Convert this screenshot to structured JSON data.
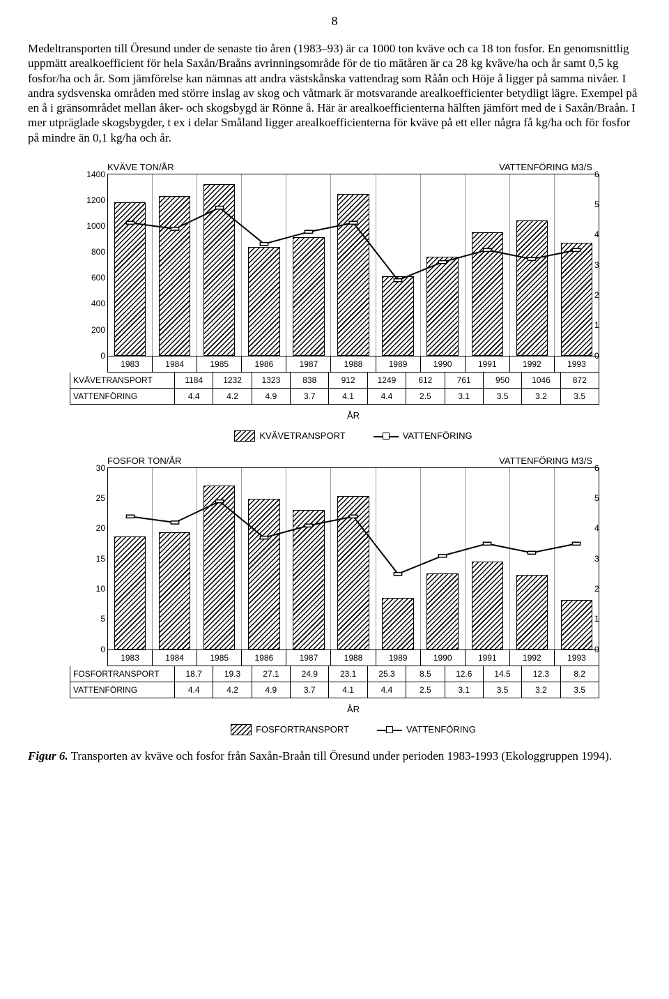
{
  "page_number": "8",
  "body_text": "Medeltransporten till Öresund under de senaste tio åren (1983–93) är ca 1000 ton kväve och ca 18 ton fosfor. En genomsnittlig uppmätt arealkoefficient för hela Saxån/Braåns avrinningsområde för de tio mätåren är ca 28 kg kväve/ha och år samt 0,5 kg fosfor/ha och år. Som jämförelse kan nämnas att andra västskånska vattendrag som Råån och Höje å ligger på samma nivåer. I andra sydsvenska områden med större inslag av skog och våtmark är motsvarande arealkoefficienter betydligt lägre. Exempel på en å i gränsområdet mellan åker- och skogsbygd är Rönne å. Här är arealkoefficienterna hälften jämfört med de i Saxån/Braån. I mer utpräglade skogsbygder, t ex i delar Småland ligger arealkoefficienterna för kväve på ett eller några få kg/ha och för fosfor på mindre än 0,1 kg/ha och år.",
  "charts": [
    {
      "left_title": "KVÄVE TON/ÅR",
      "right_title": "VATTENFÖRING M3/S",
      "y_left": {
        "min": 0,
        "max": 1400,
        "step": 200
      },
      "y_right": {
        "min": 0,
        "max": 6,
        "step": 1
      },
      "years": [
        "1983",
        "1984",
        "1985",
        "1986",
        "1987",
        "1988",
        "1989",
        "1990",
        "1991",
        "1992",
        "1993"
      ],
      "bar_label": "KVÄVETRANSPORT",
      "line_label": "VATTENFÖRING",
      "bar_values": [
        1184,
        1232,
        1323,
        838,
        912,
        1249,
        612,
        761,
        950,
        1046,
        872
      ],
      "line_values": [
        4.4,
        4.2,
        4.9,
        3.7,
        4.1,
        4.4,
        2.5,
        3.1,
        3.5,
        3.2,
        3.5
      ],
      "x_label": "ÅR",
      "legend_bar": "KVÄVETRANSPORT",
      "legend_line": "VATTENFÖRING"
    },
    {
      "left_title": "FOSFOR TON/ÅR",
      "right_title": "VATTENFÖRING M3/S",
      "y_left": {
        "min": 0,
        "max": 30,
        "step": 5
      },
      "y_right": {
        "min": 0,
        "max": 6,
        "step": 1
      },
      "years": [
        "1983",
        "1984",
        "1985",
        "1986",
        "1987",
        "1988",
        "1989",
        "1990",
        "1991",
        "1992",
        "1993"
      ],
      "bar_label": "FOSFORTRANSPORT",
      "line_label": "VATTENFÖRING",
      "bar_values": [
        18.7,
        19.3,
        27.1,
        24.9,
        23.1,
        25.3,
        8.5,
        12.6,
        14.5,
        12.3,
        8.2
      ],
      "line_values": [
        4.4,
        4.2,
        4.9,
        3.7,
        4.1,
        4.4,
        2.5,
        3.1,
        3.5,
        3.2,
        3.5
      ],
      "x_label": "ÅR",
      "legend_bar": "FOSFORTRANSPORT",
      "legend_line": "VATTENFÖRING"
    }
  ],
  "caption_label": "Figur 6.",
  "caption_text": " Transporten av kväve och fosfor från Saxån-Braån till Öresund under perioden 1983-1993 (Ekologgruppen 1994).",
  "colors": {
    "ink": "#000000",
    "paper": "#ffffff",
    "grid": "#999999"
  }
}
